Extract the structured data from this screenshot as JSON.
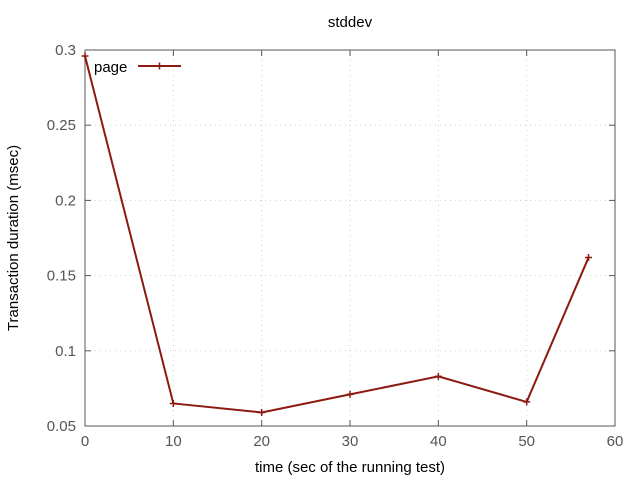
{
  "chart_data": {
    "type": "line",
    "title": "stddev",
    "xlabel": "time (sec of the running test)",
    "ylabel": "Transaction duration (msec)",
    "xlim": [
      0,
      60
    ],
    "ylim": [
      0.05,
      0.3
    ],
    "xticks": [
      0,
      10,
      20,
      30,
      40,
      50,
      60
    ],
    "yticks": [
      0.05,
      0.1,
      0.15,
      0.2,
      0.25,
      0.3
    ],
    "xtick_labels": [
      "0",
      "10",
      "20",
      "30",
      "40",
      "50",
      "60"
    ],
    "ytick_labels": [
      "0.05",
      "0.1",
      "0.15",
      "0.2",
      "0.25",
      "0.3"
    ],
    "grid": true,
    "legend_position": "top-left",
    "series": [
      {
        "name": "page",
        "color": "#8b1a10",
        "x": [
          0,
          10,
          20,
          30,
          40,
          50,
          57
        ],
        "y": [
          0.296,
          0.065,
          0.059,
          0.071,
          0.083,
          0.066,
          0.162
        ]
      }
    ]
  }
}
